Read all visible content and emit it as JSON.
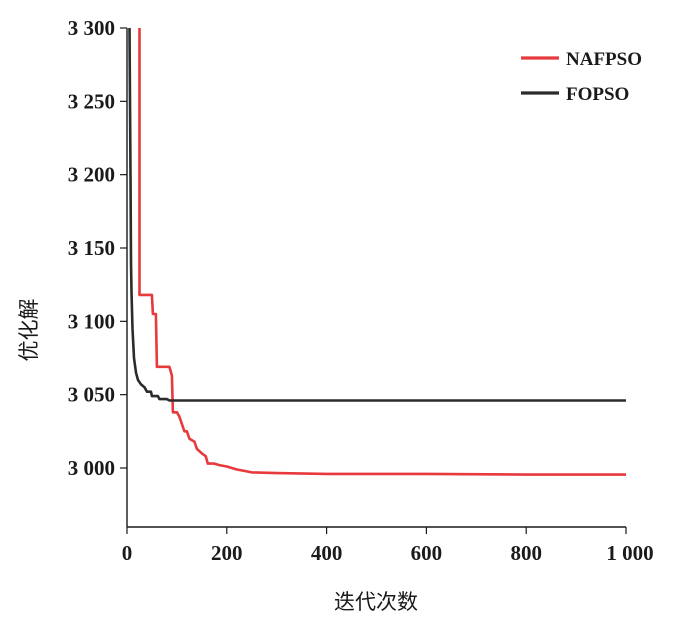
{
  "chart_data": {
    "type": "line",
    "title": "",
    "xlabel": "迭代次数",
    "ylabel": "优化解",
    "xlim": [
      0,
      1000
    ],
    "ylim": [
      2960,
      3300
    ],
    "xticks": [
      0,
      200,
      400,
      600,
      800,
      1000
    ],
    "xtick_labels": [
      "0",
      "200",
      "400",
      "600",
      "800",
      "1 000"
    ],
    "yticks": [
      3000,
      3050,
      3100,
      3150,
      3200,
      3250,
      3300
    ],
    "ytick_labels": [
      "3 000",
      "3 050",
      "3 100",
      "3 150",
      "3 200",
      "3 250",
      "3 300"
    ],
    "grid": false,
    "legend_position": "top-right",
    "series": [
      {
        "name": "NAFPSO",
        "color": "#e8393d",
        "points": [
          [
            25,
            3300
          ],
          [
            25,
            3250
          ],
          [
            25,
            3200
          ],
          [
            25,
            3150
          ],
          [
            25,
            3118
          ],
          [
            50,
            3118
          ],
          [
            52,
            3105
          ],
          [
            58,
            3105
          ],
          [
            60,
            3069
          ],
          [
            85,
            3069
          ],
          [
            90,
            3063
          ],
          [
            92,
            3038
          ],
          [
            100,
            3038
          ],
          [
            105,
            3035
          ],
          [
            110,
            3030
          ],
          [
            115,
            3025
          ],
          [
            120,
            3025
          ],
          [
            125,
            3020
          ],
          [
            135,
            3018
          ],
          [
            140,
            3013
          ],
          [
            150,
            3010
          ],
          [
            158,
            3008
          ],
          [
            162,
            3003
          ],
          [
            175,
            3003
          ],
          [
            185,
            3002
          ],
          [
            200,
            3001
          ],
          [
            210,
            3000
          ],
          [
            220,
            2999
          ],
          [
            235,
            2998
          ],
          [
            250,
            2997
          ],
          [
            300,
            2996.5
          ],
          [
            400,
            2996
          ],
          [
            600,
            2996
          ],
          [
            800,
            2995.5
          ],
          [
            1000,
            2995.5
          ]
        ]
      },
      {
        "name": "FOPSO",
        "color": "#2b2b2b",
        "points": [
          [
            5,
            3300
          ],
          [
            7,
            3200
          ],
          [
            8,
            3140
          ],
          [
            9,
            3120
          ],
          [
            11,
            3095
          ],
          [
            14,
            3075
          ],
          [
            18,
            3065
          ],
          [
            22,
            3060
          ],
          [
            28,
            3057
          ],
          [
            35,
            3055
          ],
          [
            40,
            3052
          ],
          [
            48,
            3052
          ],
          [
            50,
            3049
          ],
          [
            62,
            3049
          ],
          [
            65,
            3047
          ],
          [
            80,
            3047
          ],
          [
            85,
            3046
          ],
          [
            200,
            3046
          ],
          [
            400,
            3046
          ],
          [
            600,
            3046
          ],
          [
            800,
            3046
          ],
          [
            1000,
            3046
          ]
        ]
      }
    ]
  }
}
